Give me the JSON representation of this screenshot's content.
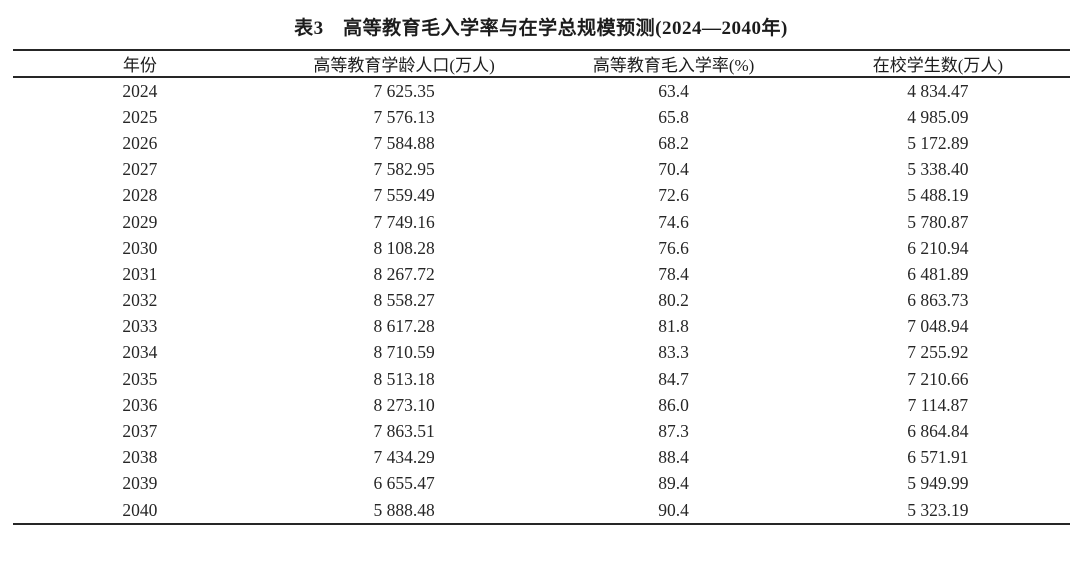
{
  "table": {
    "title": "表3　高等教育毛入学率与在学总规模预测(2024—2040年)",
    "columns": [
      "年份",
      "高等教育学龄人口(万人)",
      "高等教育毛入学率(%)",
      "在校学生数(万人)"
    ],
    "rows": [
      [
        "2024",
        "7 625.35",
        "63.4",
        "4 834.47"
      ],
      [
        "2025",
        "7 576.13",
        "65.8",
        "4 985.09"
      ],
      [
        "2026",
        "7 584.88",
        "68.2",
        "5 172.89"
      ],
      [
        "2027",
        "7 582.95",
        "70.4",
        "5 338.40"
      ],
      [
        "2028",
        "7 559.49",
        "72.6",
        "5 488.19"
      ],
      [
        "2029",
        "7 749.16",
        "74.6",
        "5 780.87"
      ],
      [
        "2030",
        "8 108.28",
        "76.6",
        "6 210.94"
      ],
      [
        "2031",
        "8 267.72",
        "78.4",
        "6 481.89"
      ],
      [
        "2032",
        "8 558.27",
        "80.2",
        "6 863.73"
      ],
      [
        "2033",
        "8 617.28",
        "81.8",
        "7 048.94"
      ],
      [
        "2034",
        "8 710.59",
        "83.3",
        "7 255.92"
      ],
      [
        "2035",
        "8 513.18",
        "84.7",
        "7 210.66"
      ],
      [
        "2036",
        "8 273.10",
        "86.0",
        "7 114.87"
      ],
      [
        "2037",
        "7 863.51",
        "87.3",
        "6 864.84"
      ],
      [
        "2038",
        "7 434.29",
        "88.4",
        "6 571.91"
      ],
      [
        "2039",
        "6 655.47",
        "89.4",
        "5 949.99"
      ],
      [
        "2040",
        "5 888.48",
        "90.4",
        "5 323.19"
      ]
    ]
  },
  "colors": {
    "text": "#1f1f1f",
    "rule": "#262626",
    "background": "#ffffff"
  },
  "chart_data": {
    "type": "table",
    "title": "表3 高等教育毛入学率与在学总规模预测(2024—2040年)",
    "columns": [
      "年份",
      "高等教育学龄人口(万人)",
      "高等教育毛入学率(%)",
      "在校学生数(万人)"
    ],
    "years": [
      2024,
      2025,
      2026,
      2027,
      2028,
      2029,
      2030,
      2031,
      2032,
      2033,
      2034,
      2035,
      2036,
      2037,
      2038,
      2039,
      2040
    ],
    "series": [
      {
        "name": "高等教育学龄人口(万人)",
        "values": [
          7625.35,
          7576.13,
          7584.88,
          7582.95,
          7559.49,
          7749.16,
          8108.28,
          8267.72,
          8558.27,
          8617.28,
          8710.59,
          8513.18,
          8273.1,
          7863.51,
          7434.29,
          6655.47,
          5888.48
        ]
      },
      {
        "name": "高等教育毛入学率(%)",
        "values": [
          63.4,
          65.8,
          68.2,
          70.4,
          72.6,
          74.6,
          76.6,
          78.4,
          80.2,
          81.8,
          83.3,
          84.7,
          86.0,
          87.3,
          88.4,
          89.4,
          90.4
        ]
      },
      {
        "name": "在校学生数(万人)",
        "values": [
          4834.47,
          4985.09,
          5172.89,
          5338.4,
          5488.19,
          5780.87,
          6210.94,
          6481.89,
          6863.73,
          7048.94,
          7255.92,
          7210.66,
          7114.87,
          6864.84,
          6571.91,
          5949.99,
          5323.19
        ]
      }
    ]
  }
}
